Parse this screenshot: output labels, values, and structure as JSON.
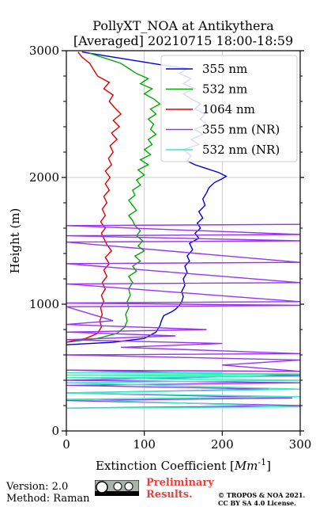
{
  "chart_data": {
    "type": "line",
    "title": "PollyXT_NOA at Antikythera",
    "subtitle": "[Averaged] 20210715 18:00-18:59",
    "xlabel": "Extinction Coefficient [Mm^-1]",
    "xlabel_main": "Extinction Coefficient [",
    "xlabel_unit": "Mm",
    "xlabel_exp": "-1",
    "xlabel_close": "]",
    "ylabel": "Height (m)",
    "xlim": [
      0,
      300
    ],
    "ylim": [
      0,
      3000
    ],
    "xticks": [
      0,
      100,
      200,
      300
    ],
    "yticks": [
      0,
      1000,
      2000,
      3000
    ],
    "grid": true,
    "legend_position": "top-right",
    "series": [
      {
        "name": "355 nm",
        "color": "#0000dd",
        "points": [
          [
            0,
            680
          ],
          [
            60,
            700
          ],
          [
            100,
            730
          ],
          [
            115,
            780
          ],
          [
            120,
            830
          ],
          [
            122,
            870
          ],
          [
            125,
            910
          ],
          [
            135,
            940
          ],
          [
            140,
            960
          ],
          [
            145,
            990
          ],
          [
            148,
            1020
          ],
          [
            150,
            1060
          ],
          [
            148,
            1100
          ],
          [
            152,
            1150
          ],
          [
            150,
            1200
          ],
          [
            155,
            1250
          ],
          [
            152,
            1300
          ],
          [
            158,
            1340
          ],
          [
            155,
            1380
          ],
          [
            162,
            1430
          ],
          [
            158,
            1480
          ],
          [
            170,
            1520
          ],
          [
            165,
            1560
          ],
          [
            172,
            1600
          ],
          [
            168,
            1640
          ],
          [
            175,
            1680
          ],
          [
            170,
            1730
          ],
          [
            178,
            1780
          ],
          [
            175,
            1830
          ],
          [
            180,
            1880
          ],
          [
            183,
            1920
          ],
          [
            190,
            1960
          ],
          [
            200,
            1990
          ],
          [
            205,
            2010
          ],
          [
            195,
            2040
          ],
          [
            180,
            2070
          ],
          [
            165,
            2100
          ],
          [
            155,
            2130
          ],
          [
            160,
            2170
          ],
          [
            150,
            2220
          ],
          [
            170,
            2260
          ],
          [
            160,
            2300
          ],
          [
            175,
            2340
          ],
          [
            165,
            2380
          ],
          [
            180,
            2420
          ],
          [
            172,
            2460
          ],
          [
            178,
            2500
          ],
          [
            165,
            2540
          ],
          [
            172,
            2580
          ],
          [
            160,
            2620
          ],
          [
            150,
            2660
          ],
          [
            165,
            2700
          ],
          [
            150,
            2740
          ],
          [
            160,
            2780
          ],
          [
            145,
            2820
          ],
          [
            155,
            2860
          ],
          [
            120,
            2890
          ],
          [
            90,
            2920
          ],
          [
            50,
            2960
          ],
          [
            20,
            2990
          ]
        ]
      },
      {
        "name": "532 nm",
        "color": "#00aa00",
        "points": [
          [
            0,
            700
          ],
          [
            40,
            730
          ],
          [
            65,
            770
          ],
          [
            75,
            820
          ],
          [
            78,
            870
          ],
          [
            76,
            920
          ],
          [
            80,
            970
          ],
          [
            78,
            1020
          ],
          [
            82,
            1070
          ],
          [
            80,
            1120
          ],
          [
            85,
            1170
          ],
          [
            80,
            1220
          ],
          [
            90,
            1260
          ],
          [
            85,
            1300
          ],
          [
            95,
            1340
          ],
          [
            88,
            1380
          ],
          [
            100,
            1420
          ],
          [
            92,
            1460
          ],
          [
            98,
            1500
          ],
          [
            90,
            1540
          ],
          [
            95,
            1580
          ],
          [
            88,
            1620
          ],
          [
            85,
            1660
          ],
          [
            80,
            1700
          ],
          [
            90,
            1740
          ],
          [
            85,
            1780
          ],
          [
            80,
            1820
          ],
          [
            88,
            1860
          ],
          [
            85,
            1900
          ],
          [
            95,
            1940
          ],
          [
            90,
            1980
          ],
          [
            100,
            2020
          ],
          [
            92,
            2060
          ],
          [
            105,
            2100
          ],
          [
            95,
            2140
          ],
          [
            108,
            2180
          ],
          [
            100,
            2220
          ],
          [
            110,
            2260
          ],
          [
            105,
            2300
          ],
          [
            115,
            2340
          ],
          [
            108,
            2380
          ],
          [
            112,
            2420
          ],
          [
            105,
            2460
          ],
          [
            115,
            2500
          ],
          [
            108,
            2540
          ],
          [
            120,
            2580
          ],
          [
            112,
            2620
          ],
          [
            100,
            2660
          ],
          [
            110,
            2700
          ],
          [
            95,
            2740
          ],
          [
            105,
            2780
          ],
          [
            90,
            2820
          ],
          [
            80,
            2860
          ],
          [
            70,
            2900
          ],
          [
            50,
            2940
          ],
          [
            30,
            2980
          ]
        ]
      },
      {
        "name": "1064 nm",
        "color": "#dd0000",
        "points": [
          [
            0,
            700
          ],
          [
            25,
            730
          ],
          [
            40,
            770
          ],
          [
            45,
            820
          ],
          [
            43,
            870
          ],
          [
            46,
            920
          ],
          [
            44,
            970
          ],
          [
            48,
            1020
          ],
          [
            45,
            1070
          ],
          [
            50,
            1120
          ],
          [
            46,
            1170
          ],
          [
            52,
            1220
          ],
          [
            48,
            1270
          ],
          [
            55,
            1320
          ],
          [
            50,
            1370
          ],
          [
            58,
            1420
          ],
          [
            52,
            1470
          ],
          [
            48,
            1520
          ],
          [
            45,
            1560
          ],
          [
            50,
            1600
          ],
          [
            44,
            1650
          ],
          [
            50,
            1700
          ],
          [
            46,
            1750
          ],
          [
            52,
            1800
          ],
          [
            48,
            1850
          ],
          [
            55,
            1900
          ],
          [
            50,
            1950
          ],
          [
            56,
            2000
          ],
          [
            50,
            2050
          ],
          [
            58,
            2100
          ],
          [
            54,
            2150
          ],
          [
            60,
            2200
          ],
          [
            56,
            2250
          ],
          [
            65,
            2300
          ],
          [
            58,
            2350
          ],
          [
            68,
            2400
          ],
          [
            60,
            2450
          ],
          [
            70,
            2500
          ],
          [
            62,
            2550
          ],
          [
            55,
            2600
          ],
          [
            60,
            2650
          ],
          [
            48,
            2700
          ],
          [
            55,
            2750
          ],
          [
            40,
            2800
          ],
          [
            35,
            2850
          ],
          [
            30,
            2900
          ],
          [
            20,
            2950
          ],
          [
            15,
            2990
          ]
        ]
      },
      {
        "name": "355 nm (NR)",
        "color": "#9933ee",
        "points": [
          [
            0,
            180
          ],
          [
            300,
            200
          ],
          [
            0,
            240
          ],
          [
            290,
            260
          ],
          [
            0,
            300
          ],
          [
            260,
            330
          ],
          [
            0,
            360
          ],
          [
            300,
            380
          ],
          [
            0,
            400
          ],
          [
            300,
            440
          ],
          [
            0,
            480
          ],
          [
            300,
            470
          ],
          [
            200,
            520
          ],
          [
            300,
            560
          ],
          [
            0,
            600
          ],
          [
            300,
            610
          ],
          [
            70,
            660
          ],
          [
            200,
            690
          ],
          [
            0,
            720
          ],
          [
            140,
            750
          ],
          [
            0,
            780
          ],
          [
            180,
            800
          ],
          [
            0,
            840
          ],
          [
            60,
            870
          ],
          [
            0,
            980
          ],
          [
            300,
            990
          ],
          [
            0,
            1010
          ],
          [
            300,
            1020
          ],
          [
            0,
            1160
          ],
          [
            300,
            1170
          ],
          [
            0,
            1320
          ],
          [
            300,
            1330
          ],
          [
            0,
            1490
          ],
          [
            300,
            1500
          ],
          [
            0,
            1540
          ],
          [
            300,
            1550
          ],
          [
            0,
            1620
          ],
          [
            300,
            1630
          ]
        ]
      },
      {
        "name": "532 nm (NR)",
        "color": "#33eebb",
        "points": [
          [
            0,
            180
          ],
          [
            300,
            190
          ],
          [
            0,
            250
          ],
          [
            300,
            270
          ],
          [
            0,
            300
          ],
          [
            300,
            330
          ],
          [
            0,
            380
          ],
          [
            300,
            400
          ],
          [
            0,
            420
          ],
          [
            300,
            430
          ],
          [
            0,
            440
          ],
          [
            300,
            450
          ],
          [
            0,
            460
          ],
          [
            200,
            460
          ]
        ]
      }
    ]
  },
  "footer": {
    "version": "Version: 2.0",
    "method": "Method: Raman",
    "preliminary_1": "Preliminary",
    "preliminary_2": "Results.",
    "copyright_1": "© TROPOS & NOA 2021.",
    "copyright_2": "CC BY SA 4.0 License."
  }
}
